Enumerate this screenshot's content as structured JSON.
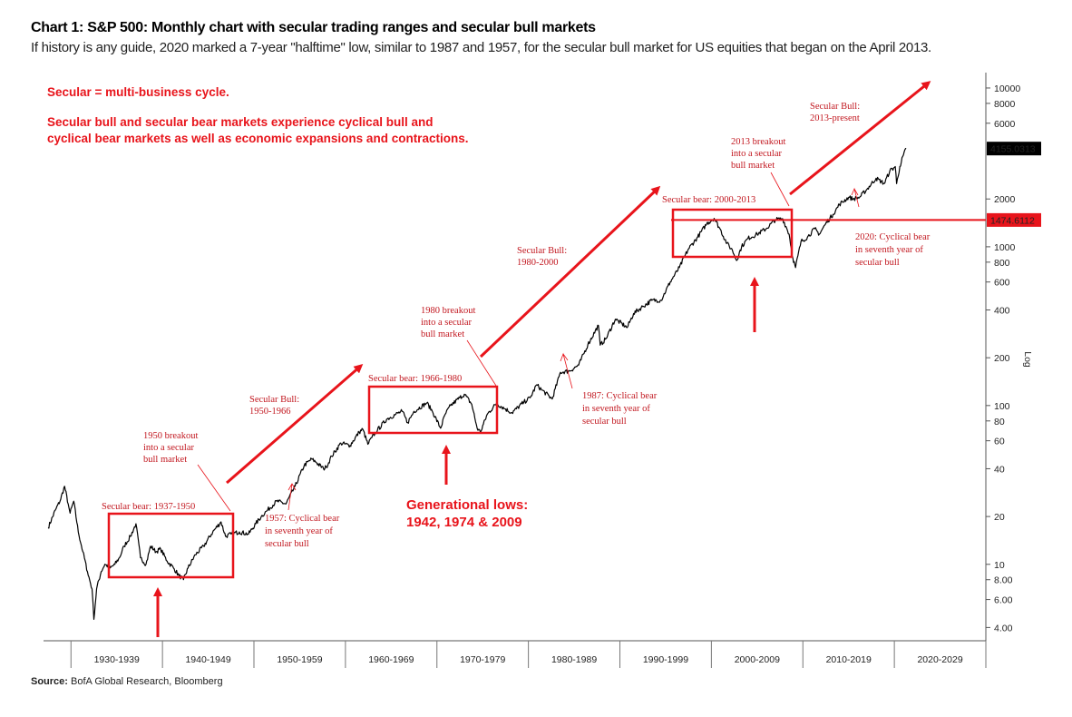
{
  "header": {
    "title": "Chart 1: S&P 500: Monthly chart with secular trading ranges and secular bull markets",
    "subtitle": "If history is any guide, 2020 marked a 7-year \"halftime\" low, similar to 1987 and 1957, for the secular bull market for US equities that began on the April 2013."
  },
  "source": {
    "label": "Source:",
    "text": "BofA Global Research, Bloomberg"
  },
  "notes": {
    "line1": "Secular = multi-business cycle.",
    "line2": "Secular bull and secular bear markets experience cyclical bull and",
    "line3": "cyclical bear markets as well as economic expansions and contractions.",
    "generational_1": "Generational lows:",
    "generational_2": "1942, 1974 & 2009"
  },
  "annotations": {
    "bear_1937": "Secular bear: 1937-1950",
    "bear_1966": "Secular bear: 1966-1980",
    "bear_2000": "Secular bear: 2000-2013",
    "bull_1950_1": "Secular Bull:",
    "bull_1950_2": "1950-1966",
    "bull_1980_1": "Secular Bull:",
    "bull_1980_2": "1980-2000",
    "bull_2013_1": "Secular Bull:",
    "bull_2013_2": "2013-present",
    "breakout_1950_1": "1950 breakout",
    "breakout_1950_2": "into a secular",
    "breakout_1950_3": "bull market",
    "breakout_1980_1": "1980 breakout",
    "breakout_1980_2": "into a secular",
    "breakout_1980_3": "bull market",
    "breakout_2013_1": "2013 breakout",
    "breakout_2013_2": "into a secular",
    "breakout_2013_3": "bull market",
    "cyc_1957_1": "1957: Cyclical bear",
    "cyc_1957_2": "in seventh year of",
    "cyc_1957_3": "secular bull",
    "cyc_1987_1": "1987: Cyclical bear",
    "cyc_1987_2": "in seventh year of",
    "cyc_1987_3": "secular bull",
    "cyc_2020_1": "2020: Cyclical bear",
    "cyc_2020_2": "in seventh year of",
    "cyc_2020_3": "secular bull"
  },
  "colors": {
    "annotation_red": "#e8141b",
    "line": "#000000",
    "price_tag": "#000000",
    "level_tag": "#e8141b"
  },
  "chart_data": {
    "type": "line",
    "ylabel": "Log",
    "y_scale": "log",
    "ylim": [
      3.3,
      12500
    ],
    "x_range": [
      1927,
      2030
    ],
    "x_ticks": [
      {
        "label": "1930-1939",
        "from": 1930,
        "to": 1940
      },
      {
        "label": "1940-1949",
        "from": 1940,
        "to": 1950
      },
      {
        "label": "1950-1959",
        "from": 1950,
        "to": 1960
      },
      {
        "label": "1960-1969",
        "from": 1960,
        "to": 1970
      },
      {
        "label": "1970-1979",
        "from": 1970,
        "to": 1980
      },
      {
        "label": "1980-1989",
        "from": 1980,
        "to": 1990
      },
      {
        "label": "1990-1999",
        "from": 1990,
        "to": 2000
      },
      {
        "label": "2000-2009",
        "from": 2000,
        "to": 2010
      },
      {
        "label": "2010-2019",
        "from": 2010,
        "to": 2020
      },
      {
        "label": "2020-2029",
        "from": 2020,
        "to": 2030
      }
    ],
    "y_ticks": [
      {
        "value": 10000,
        "label": "10000"
      },
      {
        "value": 8000,
        "label": "8000"
      },
      {
        "value": 6000,
        "label": "6000"
      },
      {
        "value": 2000,
        "label": "2000"
      },
      {
        "value": 1000,
        "label": "1000"
      },
      {
        "value": 800,
        "label": "800"
      },
      {
        "value": 600,
        "label": "600"
      },
      {
        "value": 400,
        "label": "400"
      },
      {
        "value": 200,
        "label": "200"
      },
      {
        "value": 100,
        "label": "100"
      },
      {
        "value": 80,
        "label": "80"
      },
      {
        "value": 60,
        "label": "60"
      },
      {
        "value": 40,
        "label": "40"
      },
      {
        "value": 20,
        "label": "20"
      },
      {
        "value": 10,
        "label": "10"
      },
      {
        "value": 8,
        "label": "8.00"
      },
      {
        "value": 6,
        "label": "6.00"
      },
      {
        "value": 4,
        "label": "4.00"
      }
    ],
    "last_price": {
      "value": 4155.0313,
      "label": "4155.0313"
    },
    "reference_level": {
      "value": 1474.6112,
      "label": "1474.6112"
    },
    "series": [
      {
        "x": [
          1927.5,
          1928.3,
          1928.8,
          1929.3,
          1929.7,
          1929.9,
          1930.3,
          1930.8,
          1931.3,
          1931.8,
          1932.3,
          1932.5,
          1932.8,
          1933.3,
          1933.7,
          1934.3,
          1934.8,
          1935.3,
          1935.8,
          1936.5,
          1937.1,
          1937.6,
          1938.2,
          1938.7,
          1939.3,
          1939.8,
          1940.5,
          1941.2,
          1941.8,
          1942.3,
          1942.8,
          1943.6,
          1944.5,
          1945.5,
          1946.4,
          1946.9,
          1947.5,
          1948.4,
          1949.4,
          1950.2,
          1950.8,
          1951.5,
          1952.5,
          1953.5,
          1954.5,
          1955.5,
          1956.3,
          1956.8,
          1957.6,
          1957.9,
          1958.5,
          1959.5,
          1960.5,
          1961.5,
          1961.9,
          1962.45,
          1962.9,
          1963.5,
          1964.5,
          1965.5,
          1966.2,
          1966.8,
          1967.5,
          1968.9,
          1969.5,
          1970.4,
          1970.9,
          1971.5,
          1972.5,
          1973.0,
          1973.8,
          1974.4,
          1974.75,
          1975.5,
          1976.5,
          1977.5,
          1978.2,
          1979.5,
          1980.2,
          1980.9,
          1981.5,
          1982.6,
          1983.5,
          1984.5,
          1985.5,
          1986.5,
          1987.65,
          1987.85,
          1988.5,
          1989.5,
          1990.8,
          1991.5,
          1992.5,
          1993.5,
          1994.5,
          1995.5,
          1996.5,
          1997.5,
          1998.5,
          1999.5,
          2000.3,
          2000.9,
          2001.7,
          2002.3,
          2002.75,
          2003.3,
          2004.0,
          2005.0,
          2006.0,
          2007.0,
          2007.8,
          2008.5,
          2008.9,
          2009.2,
          2009.8,
          2010.5,
          2011.3,
          2011.8,
          2012.5,
          2013.3,
          2014.0,
          2015.0,
          2015.5,
          2016.2,
          2017.0,
          2018.0,
          2018.9,
          2019.5,
          2020.1,
          2020.25,
          2020.6,
          2021.0,
          2021.3
        ],
        "y": [
          17,
          22,
          25,
          31,
          24,
          21,
          25,
          16,
          12,
          9,
          7,
          4.5,
          7,
          9,
          10,
          9.5,
          10,
          11,
          13,
          15,
          18,
          11,
          10,
          13,
          12,
          12.5,
          10.5,
          9.5,
          8.5,
          8,
          9.5,
          11.5,
          13,
          16,
          18.5,
          15,
          15.5,
          16,
          15.5,
          18,
          20,
          22,
          25,
          24,
          31,
          42,
          46,
          44,
          40,
          41,
          48,
          58,
          56,
          68,
          71,
          57,
          63,
          70,
          82,
          88,
          92,
          78,
          92,
          104,
          92,
          72,
          88,
          100,
          112,
          118,
          102,
          72,
          68,
          88,
          103,
          95,
          90,
          105,
          112,
          135,
          125,
          110,
          162,
          165,
          180,
          242,
          320,
          240,
          265,
          350,
          310,
          380,
          420,
          460,
          460,
          600,
          740,
          970,
          1150,
          1400,
          1510,
          1310,
          1050,
          950,
          820,
          1000,
          1130,
          1200,
          1300,
          1480,
          1500,
          1200,
          850,
          740,
          1080,
          1150,
          1300,
          1200,
          1400,
          1600,
          1850,
          2050,
          2000,
          2050,
          2300,
          2700,
          2500,
          3000,
          3200,
          2500,
          3200,
          3800,
          4155.0313
        ]
      }
    ]
  }
}
